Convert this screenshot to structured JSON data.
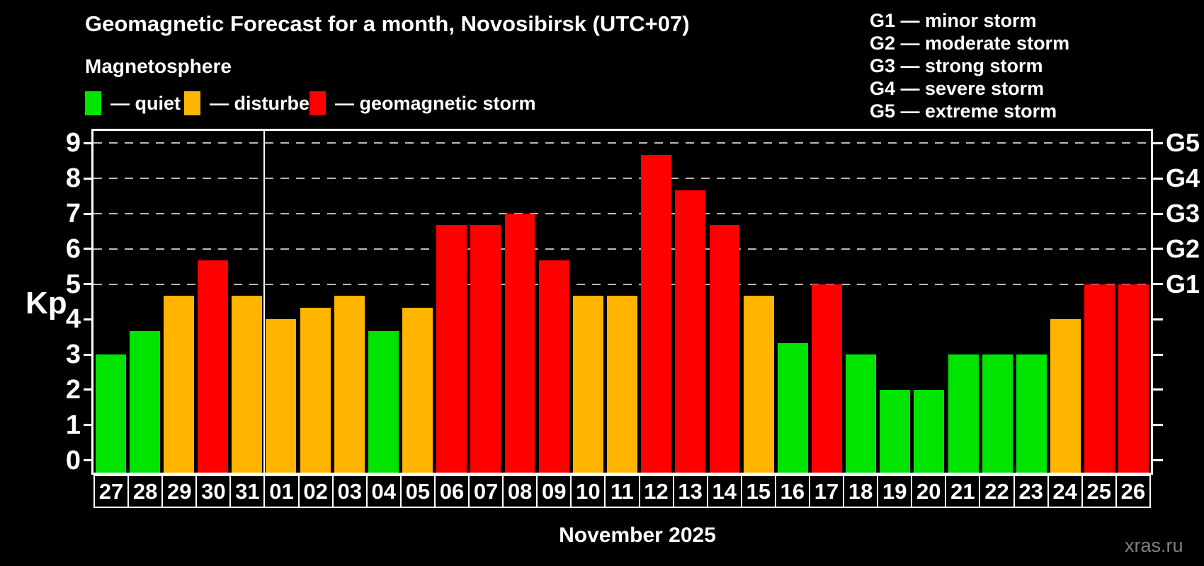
{
  "header": {
    "title": "Geomagnetic Forecast for a month, Novosibirsk (UTC+07)",
    "subtitle": "Magnetosphere"
  },
  "legend": {
    "items": [
      {
        "class": "quiet",
        "label": "— quiet"
      },
      {
        "class": "disturbed",
        "label": "— disturbed"
      },
      {
        "class": "storm",
        "label": "— geomagnetic storm"
      }
    ]
  },
  "g_scale_legend": {
    "items": [
      "G1 — minor storm",
      "G2 — moderate storm",
      "G3 — strong storm",
      "G4 — severe storm",
      "G5 — extreme storm"
    ]
  },
  "colors": {
    "quiet": "#00e400",
    "disturbed": "#ffb400",
    "storm": "#ff0000",
    "grid": "#b8b8b8",
    "axis": "#ffffff",
    "background": "#000000",
    "watermark": "#808080"
  },
  "chart_data": {
    "type": "bar",
    "title": "Geomagnetic Forecast for a month, Novosibirsk (UTC+07)",
    "subtitle": "Magnetosphere",
    "ylabel": "Kp",
    "xlabel": "November 2025",
    "ylim": [
      0,
      9
    ],
    "y_ticks": [
      0,
      1,
      2,
      3,
      4,
      5,
      6,
      7,
      8,
      9
    ],
    "gridlines": [
      5,
      6,
      7,
      8,
      9
    ],
    "grid_style": "dashed horizontal lines only at Kp 5-9 (G1-G5 storm levels)",
    "legend_position": "top-left",
    "right_axis_labels": [
      {
        "kp": 5,
        "label": "G1"
      },
      {
        "kp": 6,
        "label": "G2"
      },
      {
        "kp": 7,
        "label": "G3"
      },
      {
        "kp": 8,
        "label": "G4"
      },
      {
        "kp": 9,
        "label": "G5"
      }
    ],
    "month_boundary_after_index": 4,
    "categories": [
      "27",
      "28",
      "29",
      "30",
      "31",
      "01",
      "02",
      "03",
      "04",
      "05",
      "06",
      "07",
      "08",
      "09",
      "10",
      "11",
      "12",
      "13",
      "14",
      "15",
      "16",
      "17",
      "18",
      "19",
      "20",
      "21",
      "22",
      "23",
      "24",
      "25",
      "26"
    ],
    "values": [
      3,
      3.67,
      4.67,
      5.67,
      4.67,
      4,
      4.33,
      4.67,
      3.67,
      4.33,
      6.67,
      6.67,
      7,
      5.67,
      4.67,
      4.67,
      8.67,
      7.67,
      6.67,
      4.67,
      3.33,
      5,
      3,
      2,
      2,
      3,
      3,
      3,
      4,
      5,
      5
    ],
    "classes": [
      "quiet",
      "quiet",
      "disturbed",
      "storm",
      "disturbed",
      "disturbed",
      "disturbed",
      "disturbed",
      "quiet",
      "disturbed",
      "storm",
      "storm",
      "storm",
      "storm",
      "disturbed",
      "disturbed",
      "storm",
      "storm",
      "storm",
      "disturbed",
      "quiet",
      "storm",
      "quiet",
      "quiet",
      "quiet",
      "quiet",
      "quiet",
      "quiet",
      "disturbed",
      "storm",
      "storm"
    ]
  },
  "footer": {
    "x_axis_title": "November 2025",
    "watermark": "xras.ru"
  }
}
